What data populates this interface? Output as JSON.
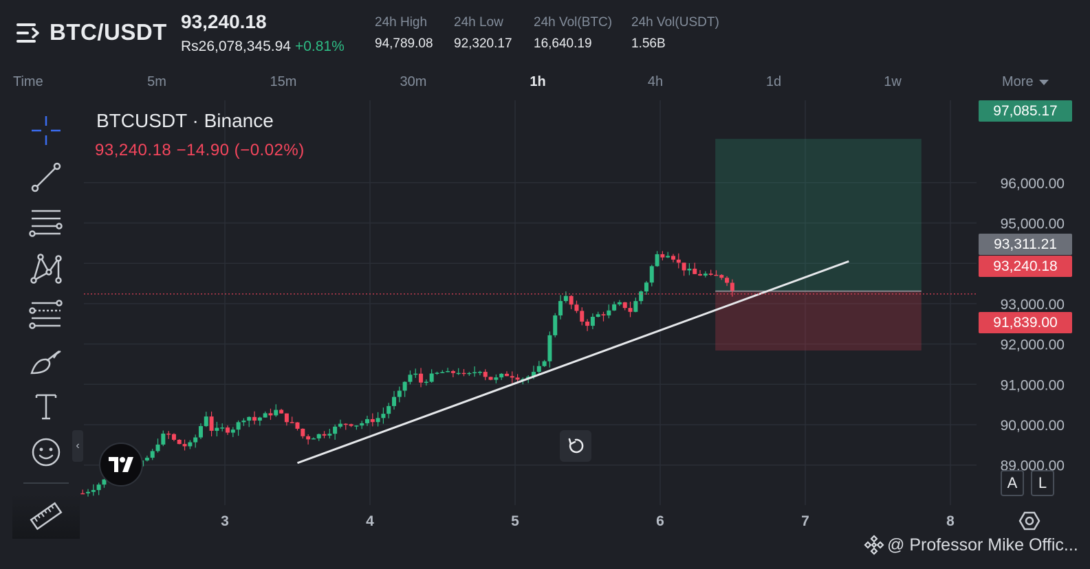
{
  "header": {
    "pair": "BTC/USDT",
    "last_price": "93,240.18",
    "fiat_price": "Rs26,078,345.94",
    "change_pct": "+0.81%",
    "stats": [
      {
        "label": "24h High",
        "value": "94,789.08"
      },
      {
        "label": "24h Low",
        "value": "92,320.17"
      },
      {
        "label": "24h Vol(BTC)",
        "value": "16,640.19"
      },
      {
        "label": "24h Vol(USDT)",
        "value": "1.56B"
      }
    ]
  },
  "tabs": {
    "time_label": "Time",
    "intervals": [
      "5m",
      "15m",
      "30m",
      "1h",
      "4h",
      "1d",
      "1w"
    ],
    "active": "1h",
    "more_label": "More"
  },
  "toolbar": {
    "tools": [
      "crosshair-icon",
      "trend-line-icon",
      "horizontal-lines-icon",
      "pattern-icon",
      "fib-levels-icon",
      "brush-icon",
      "text-icon",
      "emoji-icon",
      "ruler-icon"
    ]
  },
  "legend": {
    "title": "BTCUSDT · Binance",
    "price_line": "93,240.18  −14.90 (−0.02%)"
  },
  "price_tags": {
    "target": "97,085.17",
    "entry": "93,311.21",
    "last": "93,240.18",
    "stop": "91,839.00"
  },
  "chart_data": {
    "type": "candlestick",
    "x_ticks": [
      "3",
      "4",
      "5",
      "6",
      "7",
      "8"
    ],
    "y_ticks": [
      "96,000.00",
      "95,000.00",
      "94,000.00",
      "93,000.00",
      "92,000.00",
      "91,000.00",
      "90,000.00",
      "89,000.00"
    ],
    "ylim": [
      88000,
      97300
    ],
    "last_price": 93240.18,
    "position": {
      "target": 97085.17,
      "entry": 93311.21,
      "stop": 91839.0
    },
    "trendline": [
      {
        "x": 3.5,
        "y": 89050
      },
      {
        "x": 7.3,
        "y": 94050
      }
    ],
    "close_path": [
      [
        2.02,
        88300
      ],
      [
        2.1,
        88450
      ],
      [
        2.2,
        88700
      ],
      [
        2.3,
        88900
      ],
      [
        2.4,
        88950
      ],
      [
        2.5,
        89300
      ],
      [
        2.55,
        89650
      ],
      [
        2.6,
        89800
      ],
      [
        2.65,
        89600
      ],
      [
        2.7,
        89500
      ],
      [
        2.75,
        89450
      ],
      [
        2.8,
        89700
      ],
      [
        2.85,
        90100
      ],
      [
        2.88,
        90300
      ],
      [
        2.92,
        89700
      ],
      [
        2.96,
        89950
      ],
      [
        3.0,
        89850
      ],
      [
        3.05,
        89900
      ],
      [
        3.1,
        90050
      ],
      [
        3.15,
        90250
      ],
      [
        3.2,
        90100
      ],
      [
        3.25,
        90200
      ],
      [
        3.3,
        90250
      ],
      [
        3.35,
        90350
      ],
      [
        3.4,
        90200
      ],
      [
        3.45,
        90050
      ],
      [
        3.5,
        89900
      ],
      [
        3.55,
        89650
      ],
      [
        3.6,
        89700
      ],
      [
        3.65,
        89750
      ],
      [
        3.7,
        89800
      ],
      [
        3.75,
        89900
      ],
      [
        3.8,
        90000
      ],
      [
        3.85,
        90050
      ],
      [
        3.9,
        90000
      ],
      [
        3.95,
        90050
      ],
      [
        4.0,
        90100
      ],
      [
        4.05,
        90150
      ],
      [
        4.1,
        90300
      ],
      [
        4.15,
        90600
      ],
      [
        4.2,
        90750
      ],
      [
        4.25,
        91150
      ],
      [
        4.3,
        91300
      ],
      [
        4.35,
        91050
      ],
      [
        4.4,
        91150
      ],
      [
        4.45,
        91250
      ],
      [
        4.5,
        91300
      ],
      [
        4.55,
        91250
      ],
      [
        4.6,
        91350
      ],
      [
        4.65,
        91200
      ],
      [
        4.7,
        91250
      ],
      [
        4.75,
        91400
      ],
      [
        4.8,
        91200
      ],
      [
        4.85,
        91100
      ],
      [
        4.9,
        91200
      ],
      [
        4.95,
        91250
      ],
      [
        5.0,
        91200
      ],
      [
        5.05,
        91150
      ],
      [
        5.1,
        91200
      ],
      [
        5.15,
        91300
      ],
      [
        5.2,
        91600
      ],
      [
        5.25,
        92350
      ],
      [
        5.3,
        93100
      ],
      [
        5.35,
        93150
      ],
      [
        5.4,
        92900
      ],
      [
        5.45,
        92600
      ],
      [
        5.5,
        92500
      ],
      [
        5.55,
        92700
      ],
      [
        5.6,
        92750
      ],
      [
        5.65,
        92800
      ],
      [
        5.7,
        93000
      ],
      [
        5.75,
        92950
      ],
      [
        5.8,
        92800
      ],
      [
        5.85,
        93200
      ],
      [
        5.9,
        93500
      ],
      [
        5.95,
        94000
      ],
      [
        6.0,
        94350
      ],
      [
        6.03,
        94100
      ],
      [
        6.06,
        94300
      ],
      [
        6.1,
        94100
      ],
      [
        6.15,
        93900
      ],
      [
        6.2,
        93800
      ],
      [
        6.25,
        93700
      ],
      [
        6.3,
        93750
      ],
      [
        6.35,
        93650
      ],
      [
        6.4,
        93700
      ],
      [
        6.45,
        93650
      ],
      [
        6.5,
        93300
      ],
      [
        6.53,
        93240
      ]
    ]
  },
  "watermark": "@ Professor Mike Offic...",
  "colors": {
    "up": "#2ebd85",
    "down": "#f6465d",
    "bg": "#1e2026",
    "grid": "#2a2e36"
  }
}
